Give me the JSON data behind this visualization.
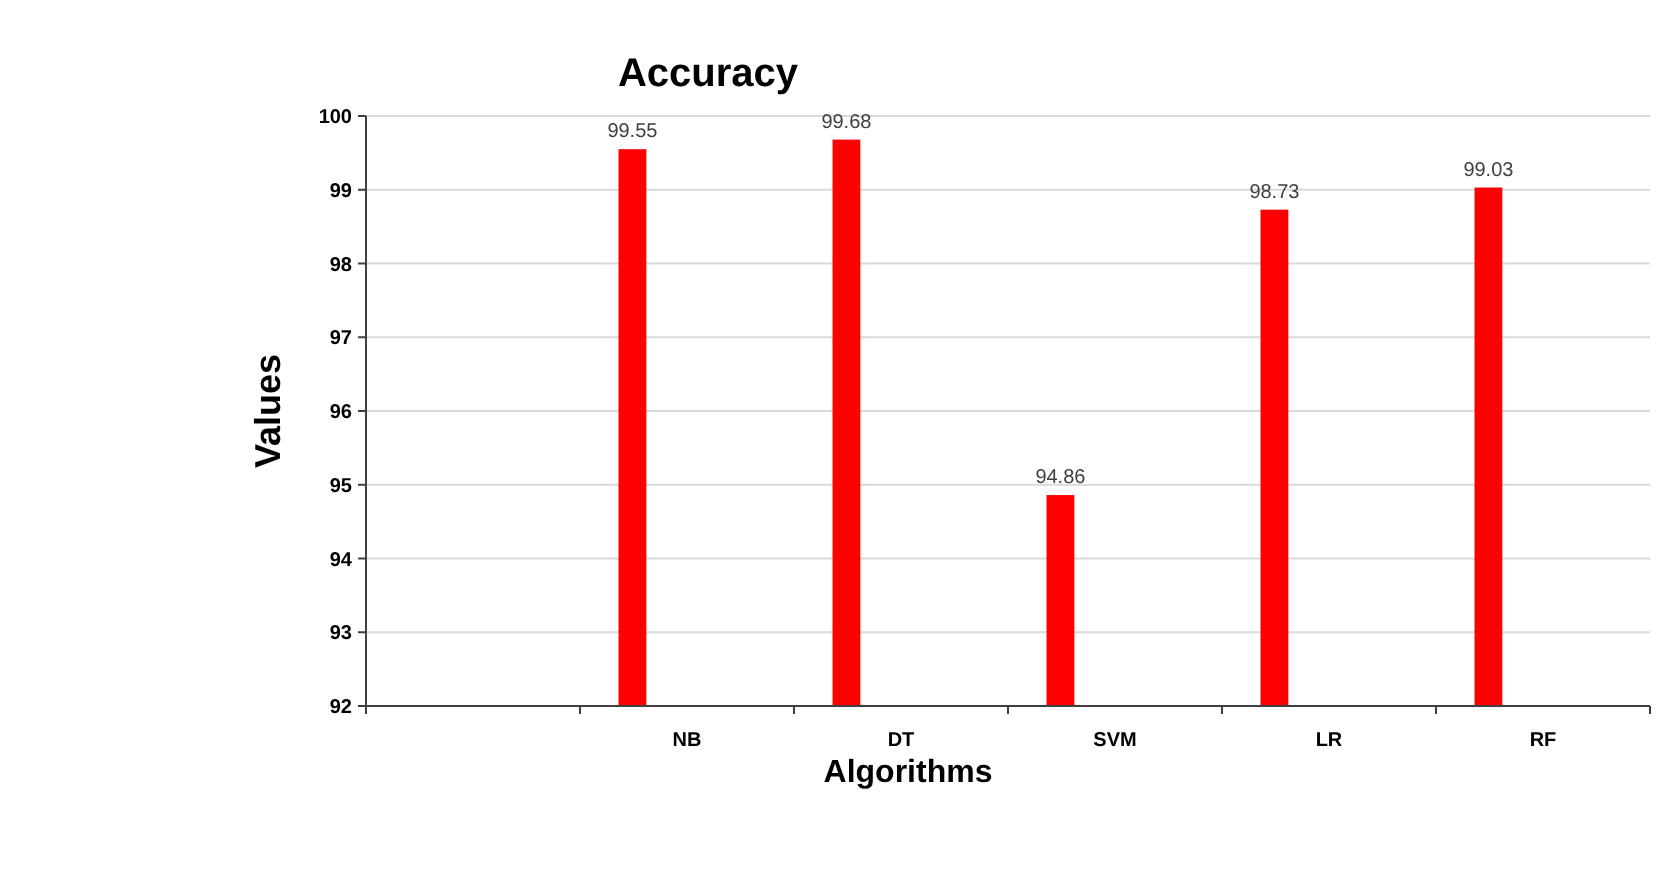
{
  "chart_data": {
    "type": "bar",
    "title": "Accuracy",
    "xlabel": "Algorithms",
    "ylabel": "Values",
    "categories": [
      null,
      "NB",
      "DT",
      "SVM",
      "LR",
      "RF"
    ],
    "values": [
      null,
      99.55,
      99.68,
      94.86,
      98.73,
      99.03
    ],
    "color": "#ff0000",
    "data_labels": true,
    "grid": "y",
    "ylim": [
      92,
      100
    ],
    "yticks": [
      92,
      93,
      94,
      95,
      96,
      97,
      98,
      99,
      100
    ]
  }
}
